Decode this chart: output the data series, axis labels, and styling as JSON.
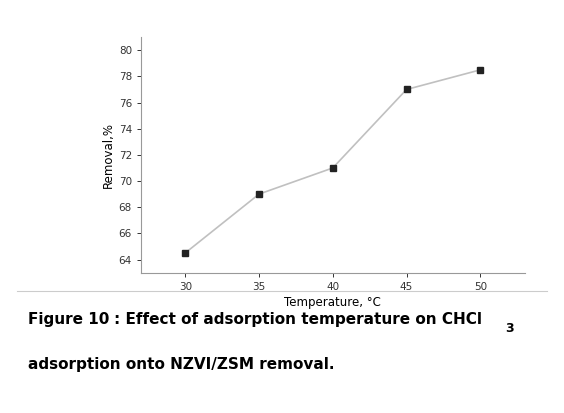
{
  "x": [
    30,
    35,
    40,
    45,
    50
  ],
  "y": [
    64.5,
    69.0,
    71.0,
    77.0,
    78.5
  ],
  "xlabel": "Temperature, °C",
  "ylabel": "Removal,%",
  "xlim": [
    27,
    53
  ],
  "ylim": [
    63,
    81
  ],
  "xticks": [
    30,
    35,
    40,
    45,
    50
  ],
  "yticks": [
    64,
    66,
    68,
    70,
    72,
    74,
    76,
    78,
    80
  ],
  "line_color": "#c0c0c0",
  "marker_color": "#222222",
  "marker_style": "s",
  "marker_size": 5,
  "line_width": 1.2,
  "bg_color": "#ffffff",
  "border_color": "#e8aab8",
  "caption_fontsize": 11,
  "axis_fontsize": 8.5,
  "tick_fontsize": 7.5
}
